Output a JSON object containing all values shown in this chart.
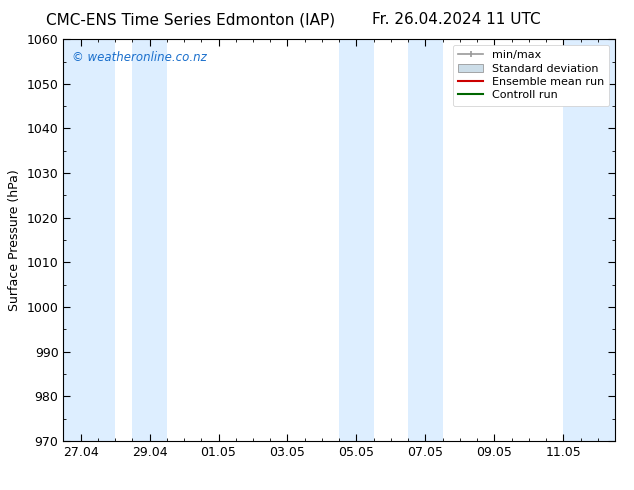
{
  "title_left": "CMC-ENS Time Series Edmonton (IAP)",
  "title_right": "Fr. 26.04.2024 11 UTC",
  "ylabel": "Surface Pressure (hPa)",
  "ylim": [
    970,
    1060
  ],
  "yticks": [
    970,
    980,
    990,
    1000,
    1010,
    1020,
    1030,
    1040,
    1050,
    1060
  ],
  "x_tick_labels": [
    "27.04",
    "29.04",
    "01.05",
    "03.05",
    "05.05",
    "07.05",
    "09.05",
    "11.05"
  ],
  "x_tick_positions": [
    0,
    2,
    4,
    6,
    8,
    10,
    12,
    14
  ],
  "x_min": -0.5,
  "x_max": 15.5,
  "background_color": "#ffffff",
  "plot_bg_color": "#ffffff",
  "watermark": "© weatheronline.co.nz",
  "watermark_color": "#1a6fcc",
  "shaded_bands": [
    {
      "x_start": -0.5,
      "x_end": 1.0,
      "color": "#ddeeff"
    },
    {
      "x_start": 1.5,
      "x_end": 2.5,
      "color": "#ddeeff"
    },
    {
      "x_start": 7.5,
      "x_end": 8.5,
      "color": "#ddeeff"
    },
    {
      "x_start": 9.5,
      "x_end": 10.5,
      "color": "#ddeeff"
    },
    {
      "x_start": 14.0,
      "x_end": 15.5,
      "color": "#ddeeff"
    }
  ],
  "legend_items": [
    {
      "label": "min/max",
      "color": "#999999",
      "style": "errorbar"
    },
    {
      "label": "Standard deviation",
      "color": "#ccdde8",
      "style": "band"
    },
    {
      "label": "Ensemble mean run",
      "color": "#cc0000",
      "style": "line"
    },
    {
      "label": "Controll run",
      "color": "#006600",
      "style": "line"
    }
  ],
  "title_fontsize": 11,
  "axis_label_fontsize": 9,
  "tick_fontsize": 9,
  "legend_fontsize": 8,
  "minor_ticks_per_major": 4
}
